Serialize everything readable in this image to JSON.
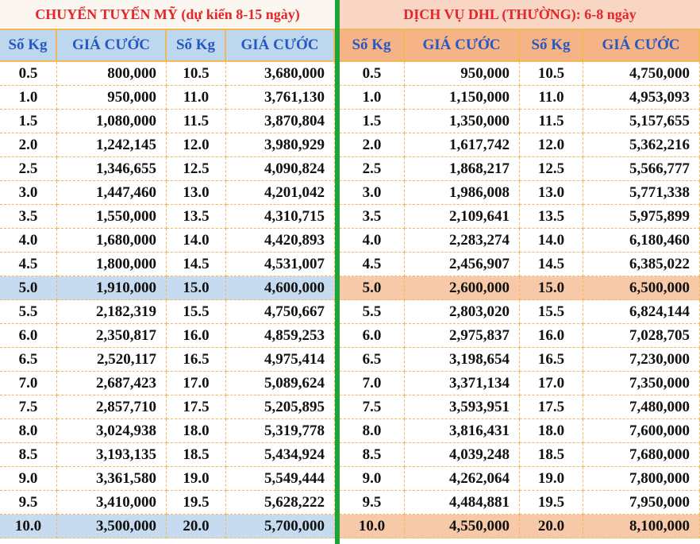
{
  "tables": [
    {
      "title": "CHUYỂN TUYẾN MỸ (dự kiến 8-15 ngày)",
      "header": [
        "Số Kg",
        "GIÁ CƯỚC",
        "Số Kg",
        "GIÁ CƯỚC"
      ],
      "rows": [
        [
          "0.5",
          "800,000",
          "10.5",
          "3,680,000"
        ],
        [
          "1.0",
          "950,000",
          "11.0",
          "3,761,130"
        ],
        [
          "1.5",
          "1,080,000",
          "11.5",
          "3,870,804"
        ],
        [
          "2.0",
          "1,242,145",
          "12.0",
          "3,980,929"
        ],
        [
          "2.5",
          "1,346,655",
          "12.5",
          "4,090,824"
        ],
        [
          "3.0",
          "1,447,460",
          "13.0",
          "4,201,042"
        ],
        [
          "3.5",
          "1,550,000",
          "13.5",
          "4,310,715"
        ],
        [
          "4.0",
          "1,680,000",
          "14.0",
          "4,420,893"
        ],
        [
          "4.5",
          "1,800,000",
          "14.5",
          "4,531,007"
        ],
        [
          "5.0",
          "1,910,000",
          "15.0",
          "4,600,000"
        ],
        [
          "5.5",
          "2,182,319",
          "15.5",
          "4,750,667"
        ],
        [
          "6.0",
          "2,350,817",
          "16.0",
          "4,859,253"
        ],
        [
          "6.5",
          "2,520,117",
          "16.5",
          "4,975,414"
        ],
        [
          "7.0",
          "2,687,423",
          "17.0",
          "5,089,624"
        ],
        [
          "7.5",
          "2,857,710",
          "17.5",
          "5,205,895"
        ],
        [
          "8.0",
          "3,024,938",
          "18.0",
          "5,319,778"
        ],
        [
          "8.5",
          "3,193,135",
          "18.5",
          "5,434,924"
        ],
        [
          "9.0",
          "3,361,580",
          "19.0",
          "5,549,444"
        ],
        [
          "9.5",
          "3,410,000",
          "19.5",
          "5,628,222"
        ],
        [
          "10.0",
          "3,500,000",
          "20.0",
          "5,700,000"
        ]
      ]
    },
    {
      "title": "DỊCH VỤ DHL (THƯỜNG): 6-8 ngày",
      "header": [
        "Số Kg",
        "GIÁ CƯỚC",
        "Số Kg",
        "GIÁ CƯỚC"
      ],
      "rows": [
        [
          "0.5",
          "950,000",
          "10.5",
          "4,750,000"
        ],
        [
          "1.0",
          "1,150,000",
          "11.0",
          "4,953,093"
        ],
        [
          "1.5",
          "1,350,000",
          "11.5",
          "5,157,655"
        ],
        [
          "2.0",
          "1,617,742",
          "12.0",
          "5,362,216"
        ],
        [
          "2.5",
          "1,868,217",
          "12.5",
          "5,566,777"
        ],
        [
          "3.0",
          "1,986,008",
          "13.0",
          "5,771,338"
        ],
        [
          "3.5",
          "2,109,641",
          "13.5",
          "5,975,899"
        ],
        [
          "4.0",
          "2,283,274",
          "14.0",
          "6,180,460"
        ],
        [
          "4.5",
          "2,456,907",
          "14.5",
          "6,385,022"
        ],
        [
          "5.0",
          "2,600,000",
          "15.0",
          "6,500,000"
        ],
        [
          "5.5",
          "2,803,020",
          "15.5",
          "6,824,144"
        ],
        [
          "6.0",
          "2,975,837",
          "16.0",
          "7,028,705"
        ],
        [
          "6.5",
          "3,198,654",
          "16.5",
          "7,230,000"
        ],
        [
          "7.0",
          "3,371,134",
          "17.0",
          "7,350,000"
        ],
        [
          "7.5",
          "3,593,951",
          "17.5",
          "7,480,000"
        ],
        [
          "8.0",
          "3,816,431",
          "18.0",
          "7,600,000"
        ],
        [
          "8.5",
          "4,039,248",
          "18.5",
          "7,680,000"
        ],
        [
          "9.0",
          "4,262,064",
          "19.0",
          "7,800,000"
        ],
        [
          "9.5",
          "4,484,881",
          "19.5",
          "7,950,000"
        ],
        [
          "10.0",
          "4,550,000",
          "20.0",
          "8,100,000"
        ]
      ]
    }
  ]
}
